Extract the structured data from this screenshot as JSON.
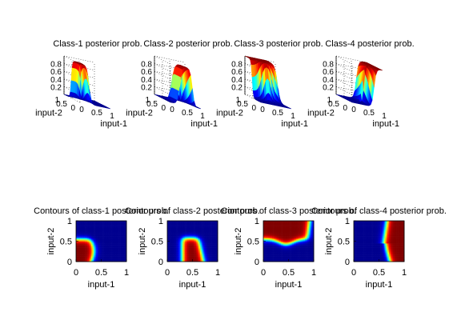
{
  "figure": {
    "background": "#ffffff",
    "colormap": "jet",
    "colormap_stops": [
      "#00008f",
      "#0000ff",
      "#00ffff",
      "#ffff00",
      "#ff0000",
      "#800000"
    ]
  },
  "chart_data": [
    {
      "type": "surface",
      "title": "Class-1 posterior prob.",
      "xlabel": "input-1",
      "ylabel": "input-2",
      "zticks": [
        "0.2",
        "0.4",
        "0.6",
        "0.8"
      ],
      "xticks": [
        "0",
        "0.5",
        "1"
      ],
      "yticks": [
        "0",
        "0.5",
        "1"
      ],
      "xlim": [
        0,
        1
      ],
      "ylim": [
        0,
        1
      ],
      "zlim": [
        0,
        1
      ],
      "region": {
        "kind": "low-x",
        "x_boundary": [
          0.5,
          0.5,
          0.4,
          0.45,
          0.5,
          0.55
        ]
      }
    },
    {
      "type": "surface",
      "title": "Class-2 posterior prob.",
      "xlabel": "input-1",
      "ylabel": "input-2",
      "zticks": [
        "0.2",
        "0.4",
        "0.6",
        "0.8"
      ],
      "xticks": [
        "0",
        "0.5",
        "1"
      ],
      "yticks": [
        "0",
        "0.5",
        "1"
      ],
      "xlim": [
        0,
        1
      ],
      "ylim": [
        0,
        1
      ],
      "zlim": [
        0,
        1
      ],
      "region": {
        "kind": "mid-band"
      }
    },
    {
      "type": "surface",
      "title": "Class-3 posterior prob.",
      "xlabel": "input-1",
      "ylabel": "input-2",
      "zticks": [
        "0.2",
        "0.4",
        "0.6",
        "0.8"
      ],
      "xticks": [
        "0",
        "0.5",
        "1"
      ],
      "yticks": [
        "0",
        "0.5",
        "1"
      ],
      "xlim": [
        0,
        1
      ],
      "ylim": [
        0,
        1
      ],
      "zlim": [
        0,
        1
      ],
      "region": {
        "kind": "top-band"
      }
    },
    {
      "type": "surface",
      "title": "Class-4 posterior prob.",
      "xlabel": "input-1",
      "ylabel": "input-2",
      "zticks": [
        "0.2",
        "0.4",
        "0.6",
        "0.8"
      ],
      "xticks": [
        "0",
        "0.5",
        "1"
      ],
      "yticks": [
        "0",
        "0.5",
        "1"
      ],
      "xlim": [
        0,
        1
      ],
      "ylim": [
        0,
        1
      ],
      "zlim": [
        0,
        1
      ],
      "region": {
        "kind": "high-x"
      }
    },
    {
      "type": "heatmap",
      "title": "Contours of class-1 posterior prob.",
      "xlabel": "input-1",
      "ylabel": "input-2",
      "xticks": [
        "0",
        "0.5",
        "1"
      ],
      "yticks": [
        "0",
        "0.5",
        "1"
      ],
      "xlim": [
        0,
        1
      ],
      "ylim": [
        0,
        1
      ],
      "region": {
        "kind": "class1"
      }
    },
    {
      "type": "heatmap",
      "title": "Contours of class-2 posterior prob.",
      "xlabel": "input-1",
      "ylabel": "input-2",
      "xticks": [
        "0",
        "0.5",
        "1"
      ],
      "yticks": [
        "0",
        "0.5",
        "1"
      ],
      "xlim": [
        0,
        1
      ],
      "ylim": [
        0,
        1
      ],
      "region": {
        "kind": "class2"
      }
    },
    {
      "type": "heatmap",
      "title": "Contours of class-3 posterior prob.",
      "xlabel": "input-1",
      "ylabel": "input-2",
      "xticks": [
        "0",
        "0.5",
        "1"
      ],
      "yticks": [
        "0",
        "0.5",
        "1"
      ],
      "xlim": [
        0,
        1
      ],
      "ylim": [
        0,
        1
      ],
      "region": {
        "kind": "class3"
      }
    },
    {
      "type": "heatmap",
      "title": "Contours of class-4 posterior prob.",
      "xlabel": "input-1",
      "ylabel": "input-2",
      "xticks": [
        "0",
        "0.5",
        "1"
      ],
      "yticks": [
        "0",
        "0.5",
        "1"
      ],
      "xlim": [
        0,
        1
      ],
      "ylim": [
        0,
        1
      ],
      "region": {
        "kind": "class4"
      }
    }
  ]
}
